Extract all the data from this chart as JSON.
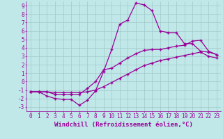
{
  "xlabel": "Windchill (Refroidissement éolien,°C)",
  "background_color": "#c0e8e8",
  "line_color": "#990099",
  "xlim": [
    -0.5,
    23.5
  ],
  "ylim": [
    -3.5,
    9.5
  ],
  "xticks": [
    0,
    1,
    2,
    3,
    4,
    5,
    6,
    7,
    8,
    9,
    10,
    11,
    12,
    13,
    14,
    15,
    16,
    17,
    18,
    19,
    20,
    21,
    22,
    23
  ],
  "yticks": [
    -3,
    -2,
    -1,
    0,
    1,
    2,
    3,
    4,
    5,
    6,
    7,
    8,
    9
  ],
  "curve1_x": [
    0,
    1,
    2,
    3,
    4,
    5,
    6,
    7,
    8,
    9,
    10,
    11,
    12,
    13,
    14,
    15,
    16,
    17,
    18,
    19,
    20,
    21,
    22,
    23
  ],
  "curve1_y": [
    -1.2,
    -1.2,
    -1.7,
    -2.0,
    -2.1,
    -2.1,
    -2.8,
    -2.2,
    -1.1,
    1.2,
    3.8,
    6.8,
    7.3,
    9.3,
    9.1,
    8.4,
    6.0,
    5.8,
    5.8,
    4.5,
    4.5,
    3.6,
    3.5,
    3.2
  ],
  "curve2_x": [
    0,
    1,
    2,
    3,
    4,
    5,
    6,
    7,
    8,
    9,
    10,
    11,
    12,
    13,
    14,
    15,
    16,
    17,
    18,
    19,
    20,
    21,
    22,
    23
  ],
  "curve2_y": [
    -1.2,
    -1.2,
    -1.2,
    -1.5,
    -1.5,
    -1.5,
    -1.5,
    -0.8,
    0.0,
    1.4,
    1.6,
    2.2,
    2.8,
    3.3,
    3.7,
    3.8,
    3.8,
    4.0,
    4.2,
    4.3,
    4.8,
    4.9,
    3.6,
    3.2
  ],
  "curve3_x": [
    0,
    1,
    2,
    3,
    4,
    5,
    6,
    7,
    8,
    9,
    10,
    11,
    12,
    13,
    14,
    15,
    16,
    17,
    18,
    19,
    20,
    21,
    22,
    23
  ],
  "curve3_y": [
    -1.2,
    -1.2,
    -1.2,
    -1.3,
    -1.3,
    -1.3,
    -1.3,
    -1.2,
    -1.0,
    -0.6,
    -0.1,
    0.4,
    0.9,
    1.4,
    1.9,
    2.2,
    2.5,
    2.7,
    2.9,
    3.1,
    3.3,
    3.5,
    3.0,
    2.8
  ],
  "marker": "+",
  "markersize": 3.5,
  "linewidth": 0.9,
  "grid_color": "#a0c8c8",
  "xlabel_fontsize": 6.5,
  "tick_fontsize": 5.5
}
